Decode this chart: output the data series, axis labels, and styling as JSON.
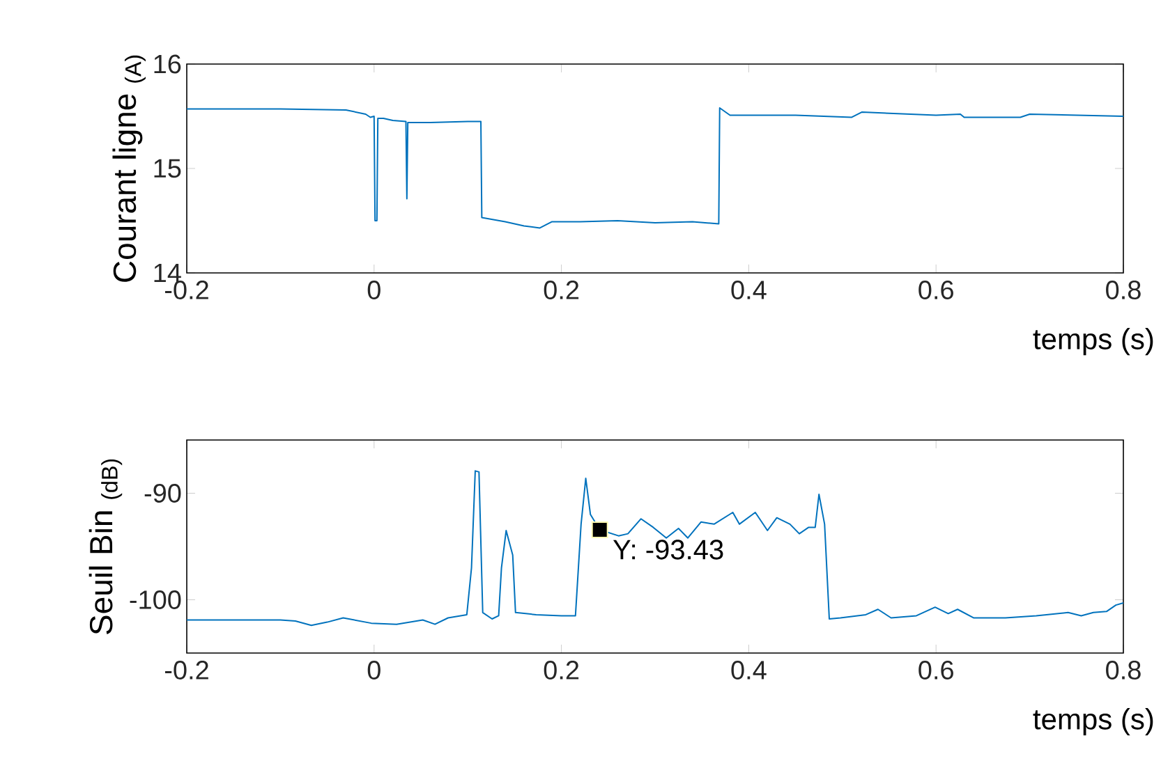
{
  "chart_data": [
    {
      "type": "line",
      "xlabel": "temps (s)",
      "ylabel": "Courant ligne $_{(A)}$",
      "xlim": [
        -0.2,
        0.8
      ],
      "ylim": [
        14,
        16
      ],
      "xticks": [
        -0.2,
        0,
        0.2,
        0.4,
        0.6,
        0.8
      ],
      "yticks": [
        14,
        15,
        16
      ],
      "x": [
        -0.2,
        -0.1,
        -0.03,
        -0.009,
        -0.004,
        0.0,
        0.001,
        0.003,
        0.004,
        0.01,
        0.02,
        0.034,
        0.035,
        0.036,
        0.06,
        0.1,
        0.114,
        0.115,
        0.14,
        0.16,
        0.177,
        0.19,
        0.22,
        0.26,
        0.3,
        0.34,
        0.368,
        0.369,
        0.38,
        0.45,
        0.51,
        0.521,
        0.6,
        0.626,
        0.63,
        0.69,
        0.7,
        0.8
      ],
      "series": [
        {
          "color": "#0072bd",
          "values": [
            15.57,
            15.57,
            15.56,
            15.52,
            15.49,
            15.5,
            14.5,
            14.5,
            15.48,
            15.48,
            15.46,
            15.45,
            14.71,
            15.44,
            15.44,
            15.45,
            15.45,
            14.53,
            14.49,
            14.45,
            14.43,
            14.49,
            14.49,
            14.5,
            14.48,
            14.49,
            14.47,
            15.58,
            15.51,
            15.51,
            15.49,
            15.54,
            15.51,
            15.52,
            15.49,
            15.49,
            15.52,
            15.5
          ]
        }
      ]
    },
    {
      "type": "line",
      "xlabel": "temps (s)",
      "ylabel": "Seuil Bin $_{(dB)}$",
      "xlim": [
        -0.2,
        0.8
      ],
      "ylim": [
        -105,
        -85
      ],
      "xticks": [
        -0.2,
        0,
        0.2,
        0.4,
        0.6,
        0.8
      ],
      "yticks": [
        -100,
        -90
      ],
      "annotations": [
        {
          "text": "Y: -93.43",
          "x": 0.241,
          "y": -93.43
        }
      ],
      "x": [
        -0.2,
        -0.1,
        -0.084,
        -0.067,
        -0.05,
        -0.033,
        -0.003,
        0.024,
        0.052,
        0.065,
        0.079,
        0.099,
        0.104,
        0.108,
        0.112,
        0.116,
        0.126,
        0.133,
        0.136,
        0.141,
        0.148,
        0.151,
        0.173,
        0.2,
        0.215,
        0.221,
        0.226,
        0.231,
        0.241,
        0.261,
        0.271,
        0.285,
        0.298,
        0.312,
        0.325,
        0.335,
        0.349,
        0.363,
        0.383,
        0.39,
        0.407,
        0.42,
        0.43,
        0.444,
        0.454,
        0.464,
        0.471,
        0.475,
        0.481,
        0.486,
        0.498,
        0.525,
        0.538,
        0.552,
        0.579,
        0.599,
        0.613,
        0.623,
        0.64,
        0.674,
        0.707,
        0.741,
        0.755,
        0.768,
        0.782,
        0.792,
        0.8
      ],
      "series": [
        {
          "color": "#0072bd",
          "values": [
            -101.9,
            -101.9,
            -102.0,
            -102.4,
            -102.1,
            -101.7,
            -102.2,
            -102.3,
            -101.9,
            -102.3,
            -101.7,
            -101.4,
            -97,
            -87.9,
            -88.0,
            -101.2,
            -101.8,
            -101.5,
            -97,
            -93.5,
            -95.8,
            -101.2,
            -101.4,
            -101.5,
            -101.5,
            -92.9,
            -88.6,
            -92.0,
            -93.43,
            -94.0,
            -93.8,
            -92.4,
            -93.2,
            -94.2,
            -93.3,
            -94.2,
            -92.7,
            -92.9,
            -91.8,
            -92.9,
            -91.8,
            -93.5,
            -92.3,
            -92.9,
            -93.8,
            -93.2,
            -93.2,
            -90.1,
            -92.9,
            -101.8,
            -101.7,
            -101.4,
            -100.9,
            -101.7,
            -101.5,
            -100.7,
            -101.3,
            -100.9,
            -101.7,
            -101.7,
            -101.5,
            -101.2,
            -101.5,
            -101.2,
            -101.1,
            -100.5,
            -100.3
          ]
        }
      ]
    }
  ]
}
